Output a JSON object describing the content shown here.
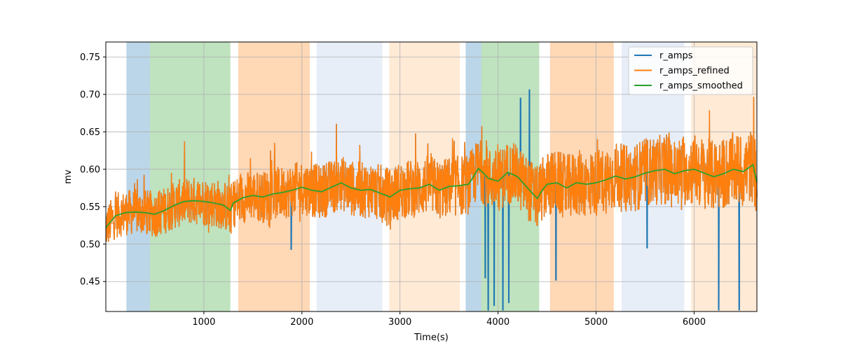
{
  "chart_data": {
    "type": "line",
    "title": "",
    "xlabel": "Time(s)",
    "ylabel": "mv",
    "xlim": [
      0,
      6640
    ],
    "ylim": [
      0.41,
      0.77
    ],
    "x_ticks": [
      1000,
      2000,
      3000,
      4000,
      5000,
      6000
    ],
    "y_ticks": [
      0.45,
      0.5,
      0.55,
      0.6,
      0.65,
      0.7,
      0.75
    ],
    "x_tick_labels": [
      "1000",
      "2000",
      "3000",
      "4000",
      "5000",
      "6000"
    ],
    "y_tick_labels": [
      "0.45",
      "0.50",
      "0.55",
      "0.60",
      "0.65",
      "0.70",
      "0.75"
    ],
    "grid": true,
    "legend_position": "top-right",
    "colors": {
      "r_amps": "#1f77b4",
      "r_amps_refined": "#ff7f0e",
      "r_amps_smoothed": "#2ca02c"
    },
    "shaded_regions": [
      {
        "start": 210,
        "end": 450,
        "color": "#1f77b4",
        "opacity": 0.3
      },
      {
        "start": 450,
        "end": 1270,
        "color": "#2ca02c",
        "opacity": 0.3
      },
      {
        "start": 1350,
        "end": 2080,
        "color": "#ff7f0e",
        "opacity": 0.3
      },
      {
        "start": 2150,
        "end": 2820,
        "color": "#aec7e8",
        "opacity": 0.3
      },
      {
        "start": 2890,
        "end": 3610,
        "color": "#ffbb78",
        "opacity": 0.3
      },
      {
        "start": 3670,
        "end": 3830,
        "color": "#1f77b4",
        "opacity": 0.3
      },
      {
        "start": 3830,
        "end": 4420,
        "color": "#2ca02c",
        "opacity": 0.3
      },
      {
        "start": 4530,
        "end": 5180,
        "color": "#ff7f0e",
        "opacity": 0.3
      },
      {
        "start": 5260,
        "end": 5900,
        "color": "#aec7e8",
        "opacity": 0.3
      },
      {
        "start": 5970,
        "end": 6640,
        "color": "#ffbb78",
        "opacity": 0.3
      }
    ],
    "series": [
      {
        "name": "r_amps",
        "spikes": [
          {
            "x": 1890,
            "y": 0.493
          },
          {
            "x": 3870,
            "y": 0.455
          },
          {
            "x": 3900,
            "y": 0.412
          },
          {
            "x": 3960,
            "y": 0.418
          },
          {
            "x": 4050,
            "y": 0.412
          },
          {
            "x": 4110,
            "y": 0.422
          },
          {
            "x": 4230,
            "y": 0.695
          },
          {
            "x": 4320,
            "y": 0.706
          },
          {
            "x": 4590,
            "y": 0.452
          },
          {
            "x": 5520,
            "y": 0.495
          },
          {
            "x": 6250,
            "y": 0.412
          },
          {
            "x": 6460,
            "y": 0.412
          }
        ]
      },
      {
        "name": "r_amps_refined",
        "noise_amplitude": 0.05
      },
      {
        "name": "r_amps_smoothed",
        "x": [
          0,
          100,
          200,
          300,
          400,
          500,
          600,
          700,
          800,
          900,
          1000,
          1100,
          1200,
          1270,
          1300,
          1400,
          1500,
          1600,
          1700,
          1800,
          1900,
          2000,
          2100,
          2200,
          2300,
          2400,
          2500,
          2600,
          2700,
          2800,
          2900,
          3000,
          3100,
          3200,
          3300,
          3400,
          3500,
          3600,
          3700,
          3800,
          3850,
          3900,
          4000,
          4100,
          4200,
          4300,
          4400,
          4450,
          4500,
          4600,
          4700,
          4800,
          4900,
          5000,
          5100,
          5200,
          5300,
          5400,
          5500,
          5600,
          5700,
          5800,
          5900,
          6000,
          6100,
          6200,
          6300,
          6400,
          6500,
          6600,
          6640
        ],
        "y": [
          0.522,
          0.538,
          0.542,
          0.543,
          0.542,
          0.54,
          0.545,
          0.552,
          0.557,
          0.558,
          0.557,
          0.555,
          0.552,
          0.545,
          0.555,
          0.562,
          0.565,
          0.563,
          0.567,
          0.569,
          0.572,
          0.576,
          0.572,
          0.57,
          0.576,
          0.582,
          0.575,
          0.572,
          0.573,
          0.568,
          0.563,
          0.572,
          0.574,
          0.575,
          0.58,
          0.572,
          0.577,
          0.578,
          0.58,
          0.601,
          0.595,
          0.588,
          0.584,
          0.596,
          0.59,
          0.575,
          0.561,
          0.572,
          0.58,
          0.582,
          0.575,
          0.582,
          0.58,
          0.582,
          0.586,
          0.591,
          0.587,
          0.59,
          0.595,
          0.598,
          0.6,
          0.594,
          0.598,
          0.6,
          0.595,
          0.59,
          0.594,
          0.6,
          0.597,
          0.606,
          0.582
        ]
      }
    ]
  }
}
